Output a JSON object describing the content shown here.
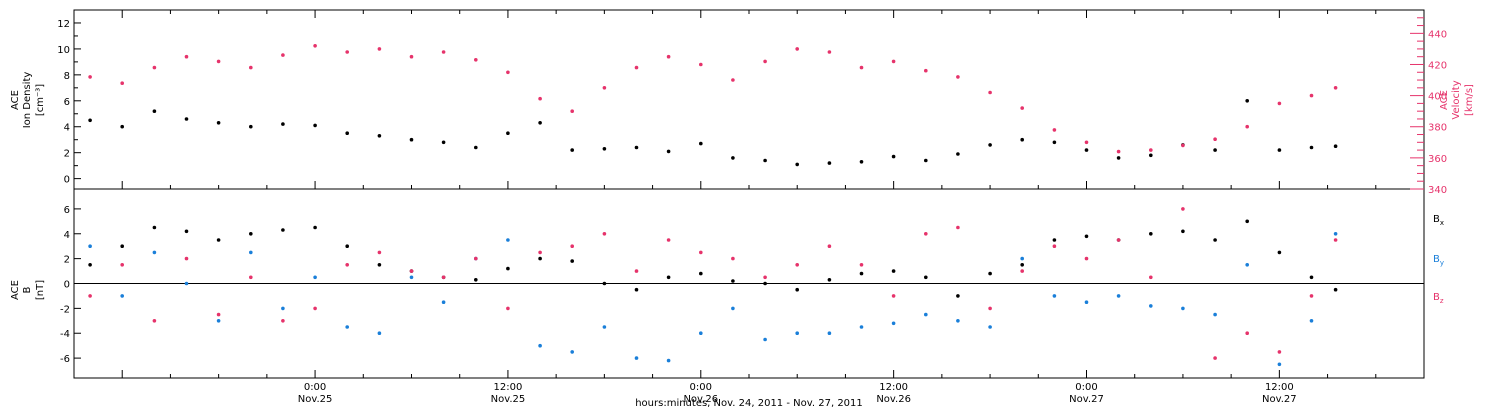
{
  "chart_data": [
    {
      "type": "scatter",
      "panel": "top",
      "ylabel_left": [
        "ACE",
        "Ion Density",
        "[cm⁻³]"
      ],
      "ylabel_right": [
        "ACE",
        "Velocity",
        "[km/s]"
      ],
      "ylim_left": [
        -0.8,
        13
      ],
      "yticks_left": [
        "0",
        "2",
        "4",
        "6",
        "8",
        "10",
        "12"
      ],
      "ylim_right": [
        340,
        455
      ],
      "yticks_right": [
        "340",
        "360",
        "380",
        "400",
        "420",
        "440"
      ],
      "series": [
        {
          "color": "#000000",
          "axis": "left",
          "x": [
            -14,
            -12,
            -10,
            -8,
            -6,
            -4,
            -2,
            0,
            2,
            4,
            6,
            8,
            10,
            12,
            14,
            16,
            18,
            20,
            22,
            24,
            26,
            28,
            30,
            32,
            34,
            36,
            38,
            40,
            42,
            44,
            46,
            48,
            50,
            52,
            54,
            56,
            58,
            60,
            62,
            63.5
          ],
          "values": [
            4.5,
            4.0,
            5.2,
            4.6,
            4.3,
            4.0,
            4.2,
            4.1,
            3.5,
            3.3,
            3.0,
            2.8,
            2.4,
            3.5,
            4.3,
            2.2,
            2.3,
            2.4,
            2.1,
            2.7,
            1.6,
            1.4,
            1.1,
            1.2,
            1.3,
            1.7,
            1.4,
            1.9,
            2.6,
            3.0,
            2.8,
            2.2,
            1.6,
            1.8,
            2.6,
            2.2,
            6.0,
            2.2,
            2.4,
            2.5
          ]
        },
        {
          "color": "#e6336b",
          "axis": "right",
          "x": [
            -14,
            -12,
            -10,
            -8,
            -6,
            -4,
            -2,
            0,
            2,
            4,
            6,
            8,
            10,
            12,
            14,
            16,
            18,
            20,
            22,
            24,
            26,
            28,
            30,
            32,
            34,
            36,
            38,
            40,
            42,
            44,
            46,
            48,
            50,
            52,
            54,
            56,
            58,
            60,
            62,
            63.5
          ],
          "values": [
            412,
            408,
            418,
            425,
            422,
            418,
            426,
            432,
            428,
            430,
            425,
            428,
            423,
            415,
            398,
            390,
            405,
            418,
            425,
            420,
            410,
            422,
            430,
            428,
            418,
            422,
            416,
            412,
            402,
            392,
            378,
            370,
            364,
            365,
            368,
            372,
            380,
            395,
            400,
            405
          ]
        }
      ]
    },
    {
      "type": "scatter",
      "panel": "bottom",
      "ylabel_left": [
        "ACE",
        "B",
        "[nT]"
      ],
      "ylim": [
        -7.6,
        7.6
      ],
      "yticks": [
        "-6",
        "-4",
        "-2",
        "0",
        "2",
        "4",
        "6"
      ],
      "legend": [
        "Bx",
        "By",
        "Bz"
      ],
      "series": [
        {
          "name": "Bx",
          "color": "#000000",
          "x": [
            -14,
            -12,
            -10,
            -8,
            -6,
            -4,
            -2,
            0,
            2,
            4,
            6,
            8,
            10,
            12,
            14,
            16,
            18,
            20,
            22,
            24,
            26,
            28,
            30,
            32,
            34,
            36,
            38,
            40,
            42,
            44,
            46,
            48,
            50,
            52,
            54,
            56,
            58,
            60,
            62,
            63.5
          ],
          "values": [
            1.5,
            3.0,
            4.5,
            4.2,
            3.5,
            4.0,
            4.3,
            4.5,
            3.0,
            1.5,
            1.0,
            0.5,
            0.3,
            1.2,
            2.0,
            1.8,
            0.0,
            -0.5,
            0.5,
            0.8,
            0.2,
            0.0,
            -0.5,
            0.3,
            0.8,
            1.0,
            0.5,
            -1.0,
            0.8,
            1.5,
            3.5,
            3.8,
            3.5,
            4.0,
            4.2,
            3.5,
            5.0,
            2.5,
            0.5,
            -0.5
          ]
        },
        {
          "name": "By",
          "color": "#1a7fd9",
          "x": [
            -14,
            -12,
            -10,
            -8,
            -6,
            -4,
            -2,
            0,
            2,
            4,
            6,
            8,
            10,
            12,
            14,
            16,
            18,
            20,
            22,
            24,
            26,
            28,
            30,
            32,
            34,
            36,
            38,
            40,
            42,
            44,
            46,
            48,
            50,
            52,
            54,
            56,
            58,
            60,
            62,
            63.5
          ],
          "values": [
            3.0,
            -1.0,
            2.5,
            0.0,
            -3.0,
            2.5,
            -2.0,
            0.5,
            -3.5,
            -4.0,
            0.5,
            -1.5,
            2.0,
            3.5,
            -5.0,
            -5.5,
            -3.5,
            -6.0,
            -6.2,
            -4.0,
            -2.0,
            -4.5,
            -4.0,
            -4.0,
            -3.5,
            -3.2,
            -2.5,
            -3.0,
            -3.5,
            2.0,
            -1.0,
            -1.5,
            -1.0,
            -1.8,
            -2.0,
            -2.5,
            1.5,
            -6.5,
            -3.0,
            4.0
          ]
        },
        {
          "name": "Bz",
          "color": "#e6336b",
          "x": [
            -14,
            -12,
            -10,
            -8,
            -6,
            -4,
            -2,
            0,
            2,
            4,
            6,
            8,
            10,
            12,
            14,
            16,
            18,
            20,
            22,
            24,
            26,
            28,
            30,
            32,
            34,
            36,
            38,
            40,
            42,
            44,
            46,
            48,
            50,
            52,
            54,
            56,
            58,
            60,
            62,
            63.5
          ],
          "values": [
            -1.0,
            1.5,
            -3.0,
            2.0,
            -2.5,
            0.5,
            -3.0,
            -2.0,
            1.5,
            2.5,
            1.0,
            0.5,
            2.0,
            -2.0,
            2.5,
            3.0,
            4.0,
            1.0,
            3.5,
            2.5,
            2.0,
            0.5,
            1.5,
            3.0,
            1.5,
            -1.0,
            4.0,
            4.5,
            -2.0,
            1.0,
            3.0,
            2.0,
            3.5,
            0.5,
            6.0,
            -6.0,
            -4.0,
            -5.5,
            -1.0,
            3.5
          ]
        }
      ]
    }
  ],
  "x_axis": {
    "xlim": [
      -15,
      69
    ],
    "major_ticks": [
      0,
      12,
      24,
      36,
      48,
      60
    ],
    "tick_labels": [
      {
        "time": "0:00",
        "date": "Nov.25"
      },
      {
        "time": "12:00",
        "date": "Nov.25"
      },
      {
        "time": "0:00",
        "date": "Nov.26"
      },
      {
        "time": "12:00",
        "date": "Nov.26"
      },
      {
        "time": "0:00",
        "date": "Nov.27"
      },
      {
        "time": "12:00",
        "date": "Nov.27"
      }
    ],
    "xlabel": "hours:minutes, Nov. 24, 2011 - Nov. 27, 2011"
  },
  "legend_labels": {
    "bx": {
      "base": "B",
      "sub": "x"
    },
    "by": {
      "base": "B",
      "sub": "y"
    },
    "bz": {
      "base": "B",
      "sub": "z"
    }
  },
  "colors": {
    "density": "#000000",
    "velocity": "#e6336b",
    "bx": "#000000",
    "by": "#1a7fd9",
    "bz": "#e6336b"
  }
}
